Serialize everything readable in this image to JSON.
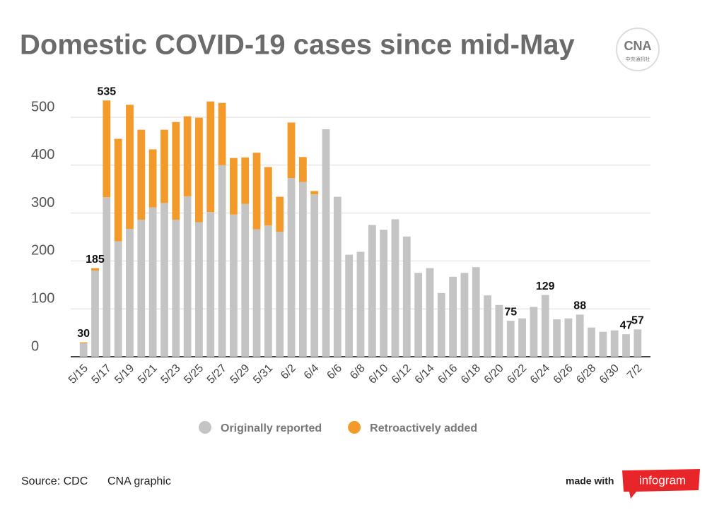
{
  "chart_data": {
    "type": "stacked_bar",
    "title": "Domestic COVID-19 cases since mid-May",
    "categories": [
      "5/15",
      null,
      "5/17",
      null,
      "5/19",
      null,
      "5/21",
      null,
      "5/23",
      null,
      "5/25",
      null,
      "5/27",
      null,
      "5/29",
      null,
      "5/31",
      null,
      "6/2",
      null,
      "6/4",
      null,
      "6/6",
      null,
      "6/8",
      null,
      "6/10",
      null,
      "6/12",
      null,
      "6/14",
      null,
      "6/16",
      null,
      "6/18",
      null,
      "6/20",
      null,
      "6/22",
      null,
      "6/24",
      null,
      "6/26",
      null,
      "6/28",
      null,
      "6/30",
      null,
      "7/2"
    ],
    "series": [
      {
        "name": "Originally reported",
        "color": "#c4c4c4",
        "values": [
          28,
          180,
          333,
          241,
          267,
          286,
          312,
          321,
          286,
          335,
          281,
          302,
          400,
          297,
          319,
          266,
          274,
          261,
          373,
          365,
          339,
          475,
          334,
          213,
          219,
          275,
          265,
          287,
          251,
          175,
          185,
          133,
          167,
          175,
          187,
          128,
          108,
          75,
          80,
          104,
          129,
          78,
          80,
          88,
          61,
          52,
          55,
          47,
          57
        ]
      },
      {
        "name": "Retroactively added",
        "color": "#f39a2a",
        "values": [
          2,
          5,
          202,
          214,
          259,
          188,
          121,
          153,
          204,
          167,
          218,
          231,
          130,
          118,
          97,
          160,
          122,
          73,
          116,
          52,
          7,
          0,
          0,
          0,
          0,
          0,
          0,
          0,
          0,
          0,
          0,
          0,
          0,
          0,
          0,
          0,
          0,
          0,
          0,
          0,
          0,
          0,
          0,
          0,
          0,
          0,
          0,
          0,
          0
        ]
      }
    ],
    "annotations": [
      {
        "index": 0,
        "value": 30
      },
      {
        "index": 1,
        "value": 185
      },
      {
        "index": 2,
        "value": 535
      },
      {
        "index": 37,
        "value": 75
      },
      {
        "index": 40,
        "value": 129
      },
      {
        "index": 43,
        "value": 88
      },
      {
        "index": 47,
        "value": 47
      },
      {
        "index": 48,
        "value": 57
      }
    ],
    "ylim": [
      0,
      500
    ],
    "yticks": [
      0,
      100,
      200,
      300,
      400,
      500
    ],
    "grid": true,
    "legend": "bottom",
    "source": "Source: CDC",
    "credit": "CNA graphic",
    "made_with": "made with",
    "brand": "infogram",
    "logo": {
      "text": "CNA",
      "subtext": "中央通訊社"
    }
  }
}
